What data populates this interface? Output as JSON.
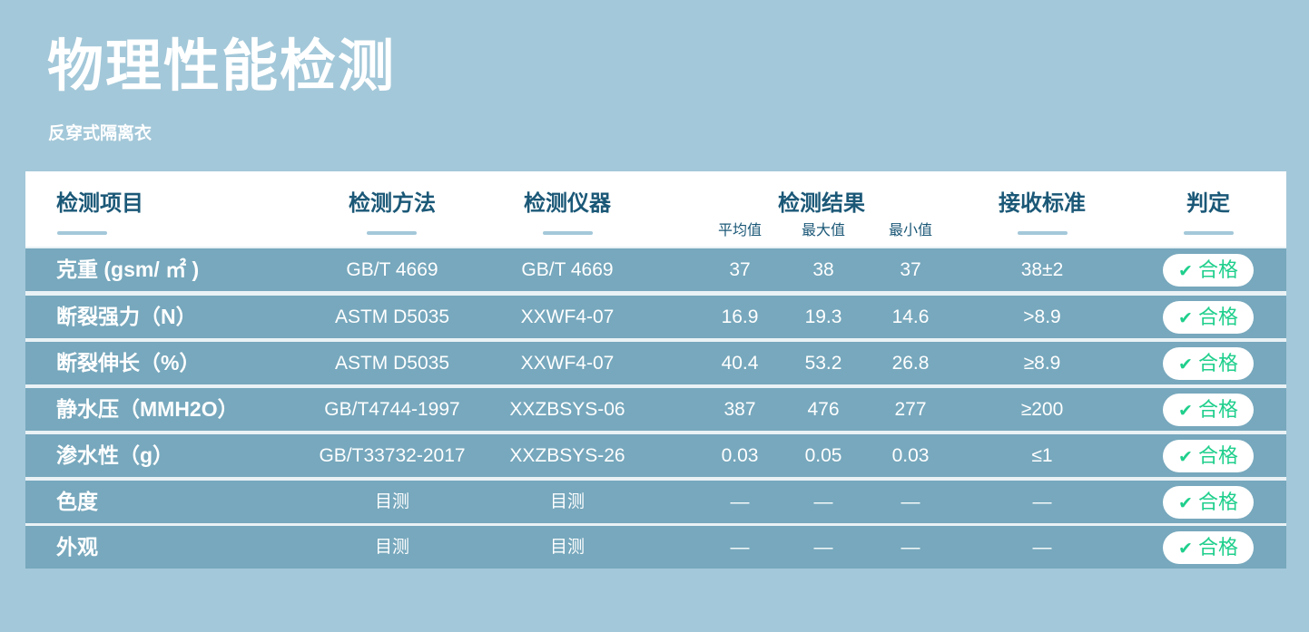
{
  "title": "物理性能检测",
  "subtitle": "反穿式隔离衣",
  "headers": {
    "item": "检测项目",
    "method": "检测方法",
    "instrument": "检测仪器",
    "result": "检测结果",
    "avg": "平均值",
    "max": "最大值",
    "min": "最小值",
    "standard": "接收标准",
    "verdict": "判定"
  },
  "rows": [
    {
      "item": "克重 (gsm/ ㎡ )",
      "method": "GB/T 4669",
      "instrument": "GB/T 4669",
      "avg": "37",
      "max": "38",
      "min": "37",
      "standard": "38±2",
      "verdict": "合格"
    },
    {
      "item": "断裂强力（N）",
      "method": "ASTM D5035",
      "instrument": "XXWF4-07",
      "avg": "16.9",
      "max": "19.3",
      "min": "14.6",
      "standard": ">8.9",
      "verdict": "合格"
    },
    {
      "item": "断裂伸长（%）",
      "method": "ASTM D5035",
      "instrument": "XXWF4-07",
      "avg": "40.4",
      "max": "53.2",
      "min": "26.8",
      "standard": "≥8.9",
      "verdict": "合格"
    },
    {
      "item": "静水压（MMH2O）",
      "method": "GB/T4744-1997",
      "instrument": "XXZBSYS-06",
      "avg": "387",
      "max": "476",
      "min": "277",
      "standard": "≥200",
      "verdict": "合格"
    },
    {
      "item": "渗水性（g）",
      "method": "GB/T33732-2017",
      "instrument": "XXZBSYS-26",
      "avg": "0.03",
      "max": "0.05",
      "min": "0.03",
      "standard": "≤1",
      "verdict": "合格"
    },
    {
      "item": "色度",
      "method": "目测",
      "instrument": "目测",
      "avg": "—",
      "max": "—",
      "min": "—",
      "standard": "—",
      "verdict": "合格"
    },
    {
      "item": "外观",
      "method": "目测",
      "instrument": "目测",
      "avg": "—",
      "max": "—",
      "min": "—",
      "standard": "—",
      "verdict": "合格"
    }
  ],
  "colors": {
    "background": "#a3c8d9",
    "row": "#77a8bd",
    "header_text": "#1b5877",
    "pass": "#1fcf8c"
  },
  "verdict_icon": "check-icon"
}
